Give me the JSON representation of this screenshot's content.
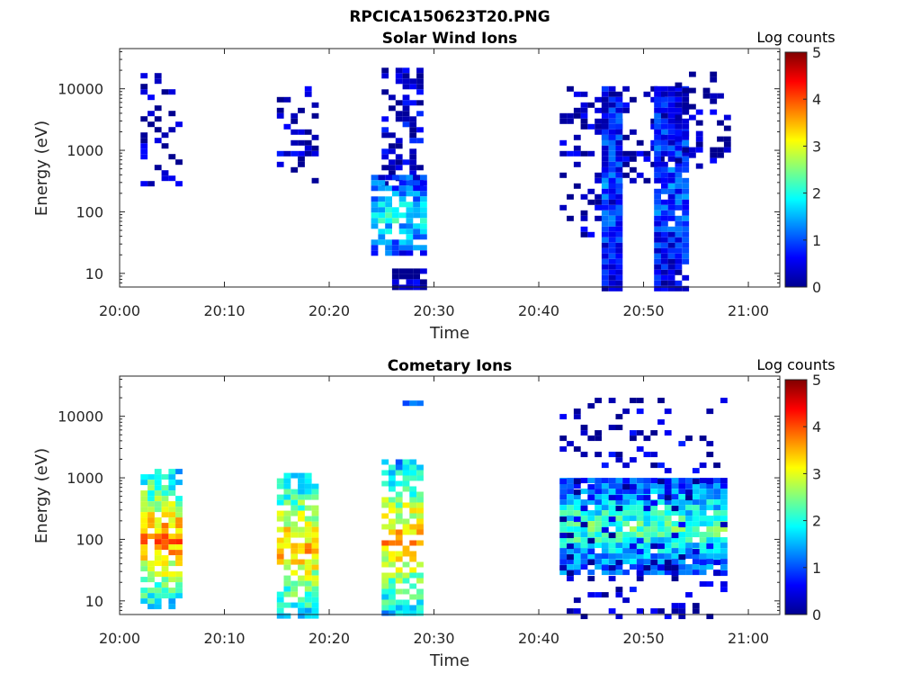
{
  "figure": {
    "suptitle": "RPCICA150623T20.PNG"
  },
  "colors": {
    "colormap": [
      "#00008f",
      "#0000ff",
      "#0080ff",
      "#00ffff",
      "#80ff80",
      "#ffff00",
      "#ff8000",
      "#ff0000",
      "#800000"
    ]
  },
  "chart_data": [
    {
      "type": "heatmap",
      "title": "Solar Wind Ions",
      "xlabel": "Time",
      "ylabel": "Energy (eV)",
      "xlim": [
        "20:00",
        "21:03"
      ],
      "xticks": [
        "20:00",
        "20:10",
        "20:20",
        "20:30",
        "20:40",
        "20:50",
        "21:00"
      ],
      "yscale": "log",
      "ylim": [
        6,
        45000
      ],
      "yticks": [
        "10",
        "100",
        "1000",
        "10000"
      ],
      "colorbar": {
        "label": "Log counts",
        "range": [
          0,
          5
        ],
        "ticks": [
          "0",
          "1",
          "2",
          "3",
          "4",
          "5"
        ]
      },
      "blocks": [
        {
          "t_start": "20:02",
          "t_end": "20:05",
          "e_min": 300,
          "e_max": 18000,
          "intensity": 0.2,
          "density": 0.25
        },
        {
          "t_start": "20:15",
          "t_end": "20:18",
          "e_min": 300,
          "e_max": 11000,
          "intensity": 0.2,
          "density": 0.25
        },
        {
          "t_start": "20:25",
          "t_end": "20:28",
          "e_min": 300,
          "e_max": 22000,
          "intensity": 0.3,
          "density": 0.45
        },
        {
          "t_start": "20:24",
          "t_end": "20:28",
          "e_min": 20,
          "e_max": 400,
          "intensity": 1.5,
          "density": 0.85
        },
        {
          "t_start": "20:26",
          "t_end": "20:28",
          "e_min": 6,
          "e_max": 12,
          "intensity": 0.2,
          "density": 0.9
        },
        {
          "t_start": "20:42",
          "t_end": "20:47",
          "e_min": 40,
          "e_max": 11000,
          "intensity": 0.2,
          "density": 0.3
        },
        {
          "t_start": "20:46",
          "t_end": "20:47",
          "e_min": 6,
          "e_max": 11000,
          "intensity": 0.8,
          "density": 0.95
        },
        {
          "t_start": "20:48",
          "t_end": "20:51",
          "e_min": 300,
          "e_max": 11000,
          "intensity": 0.2,
          "density": 0.3
        },
        {
          "t_start": "20:51",
          "t_end": "20:53",
          "e_min": 6,
          "e_max": 11000,
          "intensity": 0.8,
          "density": 0.95
        },
        {
          "t_start": "20:53",
          "t_end": "20:57",
          "e_min": 600,
          "e_max": 19000,
          "intensity": 0.2,
          "density": 0.3
        }
      ]
    },
    {
      "type": "heatmap",
      "title": "Cometary Ions",
      "xlabel": "Time",
      "ylabel": "Energy (eV)",
      "xlim": [
        "20:00",
        "21:03"
      ],
      "xticks": [
        "20:00",
        "20:10",
        "20:20",
        "20:30",
        "20:40",
        "20:50",
        "21:00"
      ],
      "yscale": "log",
      "ylim": [
        6,
        45000
      ],
      "yticks": [
        "10",
        "100",
        "1000",
        "10000"
      ],
      "colorbar": {
        "label": "Log counts",
        "range": [
          0,
          5
        ],
        "ticks": [
          "0",
          "1",
          "2",
          "3",
          "4",
          "5"
        ]
      },
      "blocks": [
        {
          "t_start": "20:02",
          "t_end": "20:05",
          "e_min": 8,
          "e_max": 1400,
          "intensity": 3.0,
          "density": 0.8
        },
        {
          "t_start": "20:15",
          "t_end": "20:18",
          "e_min": 6,
          "e_max": 1200,
          "intensity": 2.8,
          "density": 0.75
        },
        {
          "t_start": "20:25",
          "t_end": "20:28",
          "e_min": 6,
          "e_max": 2000,
          "intensity": 2.8,
          "density": 0.75
        },
        {
          "t_start": "20:27",
          "t_end": "20:28",
          "e_min": 17000,
          "e_max": 18000,
          "intensity": 1.8,
          "density": 1.0
        },
        {
          "t_start": "20:42",
          "t_end": "20:57",
          "e_min": 30,
          "e_max": 1000,
          "intensity": 1.8,
          "density": 0.95
        },
        {
          "t_start": "20:42",
          "t_end": "20:57",
          "e_min": 6,
          "e_max": 20000,
          "intensity": 0.3,
          "density": 0.15
        }
      ]
    }
  ]
}
